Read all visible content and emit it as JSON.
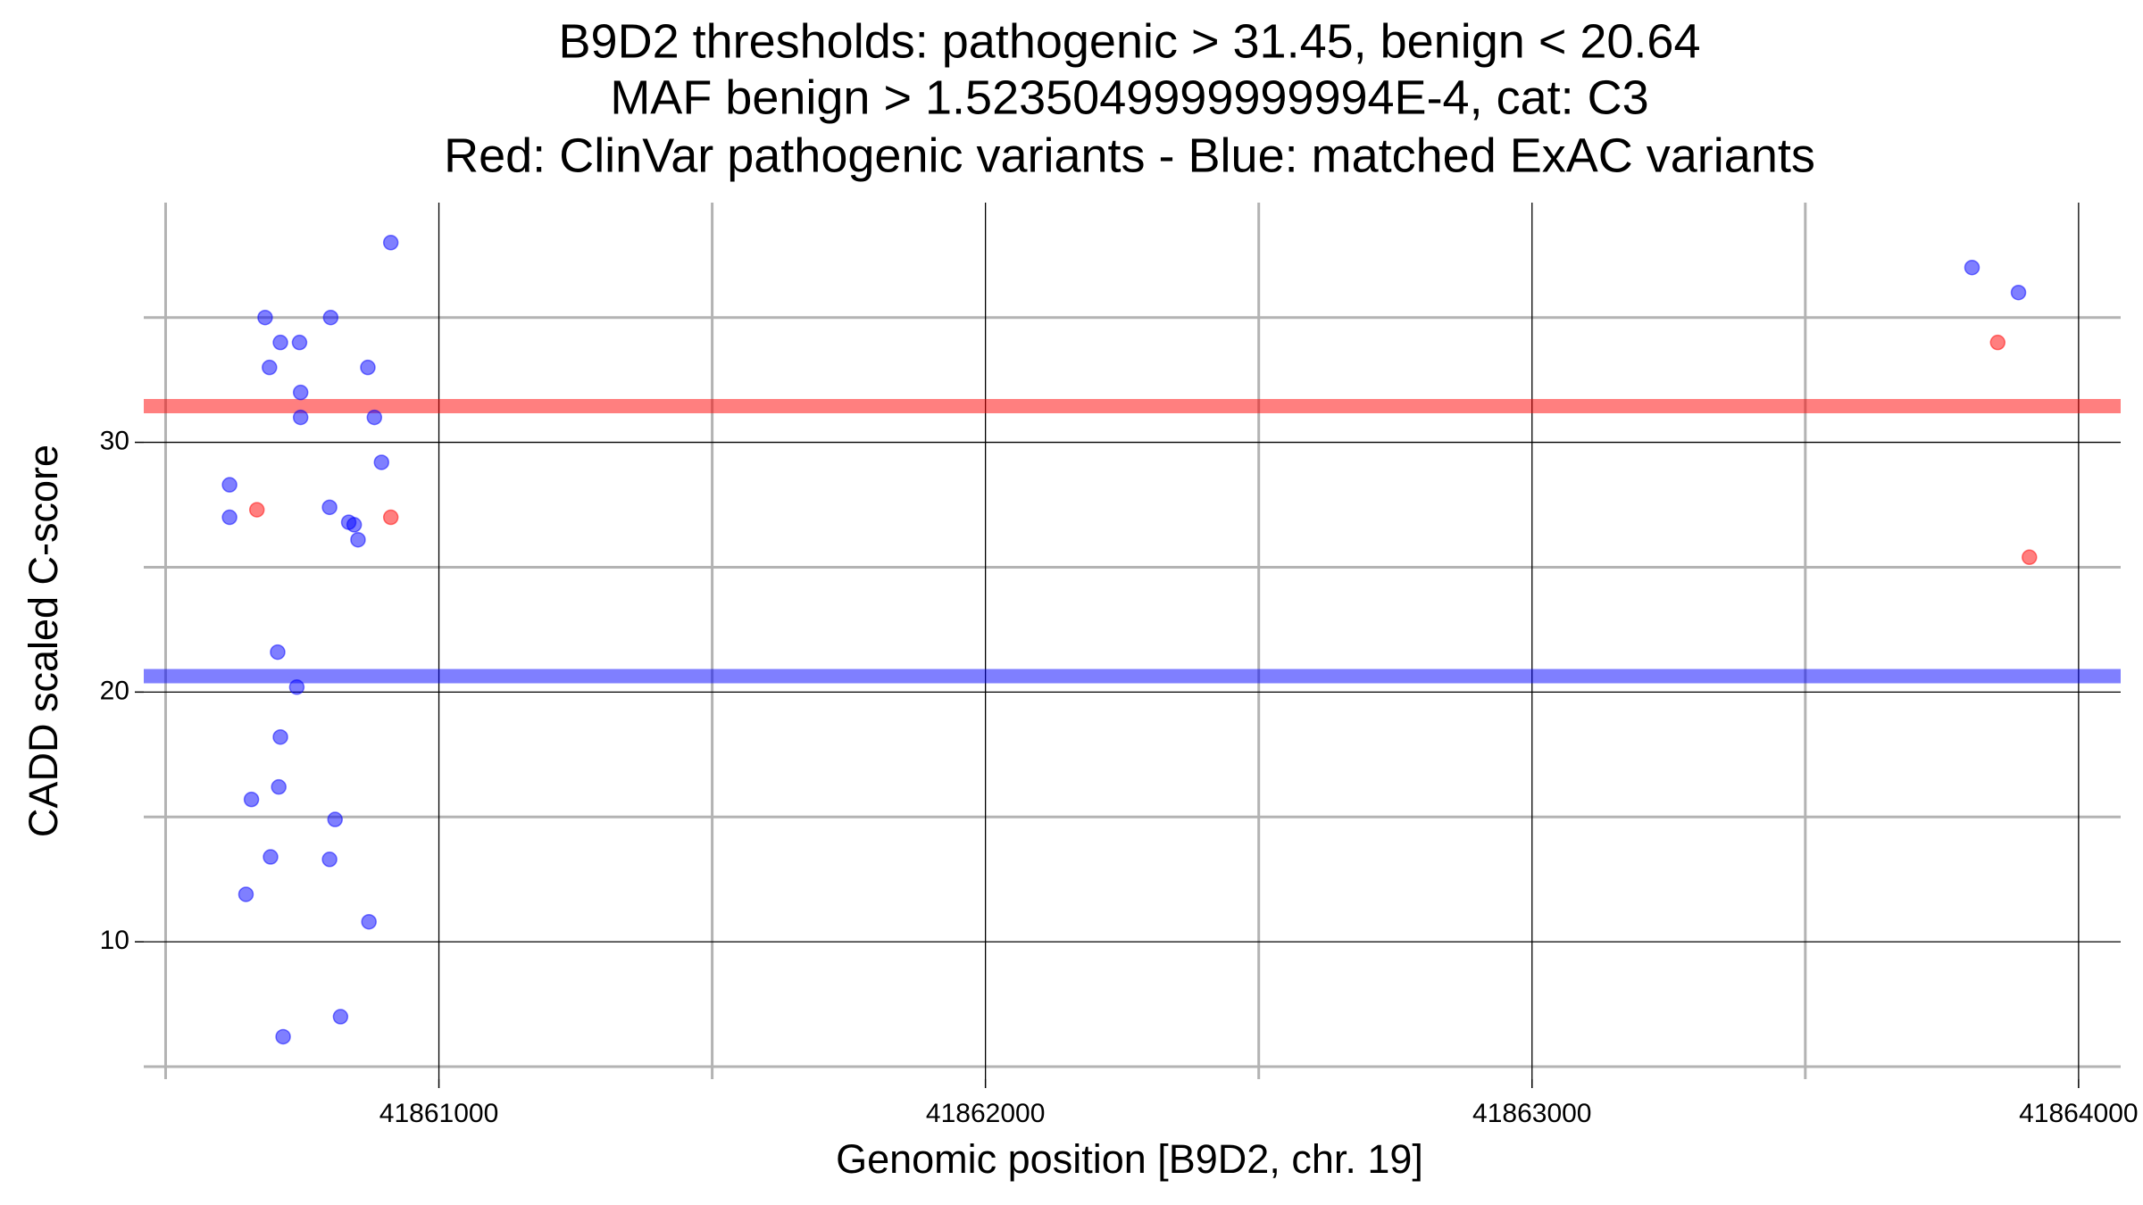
{
  "chart_data": {
    "type": "scatter",
    "title": [
      "B9D2 thresholds: pathogenic > 31.45, benign < 20.64",
      "MAF benign > 1.5235049999999994E-4, cat: C3",
      "Red: ClinVar pathogenic variants - Blue: matched ExAC variants"
    ],
    "xlabel": "Genomic position [B9D2, chr. 19]",
    "ylabel": "CADD scaled C-score",
    "xlim": [
      41860460,
      41864077
    ],
    "ylim": [
      4.5,
      39.6
    ],
    "xticks": [
      41861000,
      41862000,
      41863000,
      41864000
    ],
    "yticks": [
      10,
      20,
      30
    ],
    "minor_xticks": [
      41860500,
      41861500,
      41862500,
      41863500
    ],
    "minor_yticks": [
      5,
      15,
      25,
      35
    ],
    "grid": true,
    "hlines": [
      {
        "value": 31.45,
        "color": "#ff0000"
      },
      {
        "value": 20.64,
        "color": "#0000ff"
      }
    ],
    "series": [
      {
        "color": "#0000ff",
        "x": [
          41860617,
          41860617,
          41860682,
          41860710,
          41860745,
          41860690,
          41860747,
          41860747,
          41860802,
          41860870,
          41860882,
          41860912,
          41860895,
          41860800,
          41860835,
          41860845,
          41860852,
          41860705,
          41860740,
          41860710,
          41860657,
          41860707,
          41860810,
          41860692,
          41860800,
          41860647,
          41860872,
          41860820,
          41860715,
          41863805,
          41863890
        ],
        "values": [
          28.3,
          27.0,
          35.0,
          34.0,
          34.0,
          33.0,
          32.0,
          31.0,
          35.0,
          33.0,
          31.0,
          38.0,
          29.2,
          27.4,
          26.8,
          26.7,
          26.1,
          21.6,
          20.2,
          18.2,
          15.7,
          16.2,
          14.9,
          13.4,
          13.3,
          11.9,
          10.8,
          7.0,
          6.2,
          37.0,
          36.0
        ]
      },
      {
        "color": "#ff0000",
        "x": [
          41860667,
          41860912,
          41863852,
          41863910
        ],
        "values": [
          27.3,
          27.0,
          34.0,
          25.4
        ]
      }
    ]
  }
}
